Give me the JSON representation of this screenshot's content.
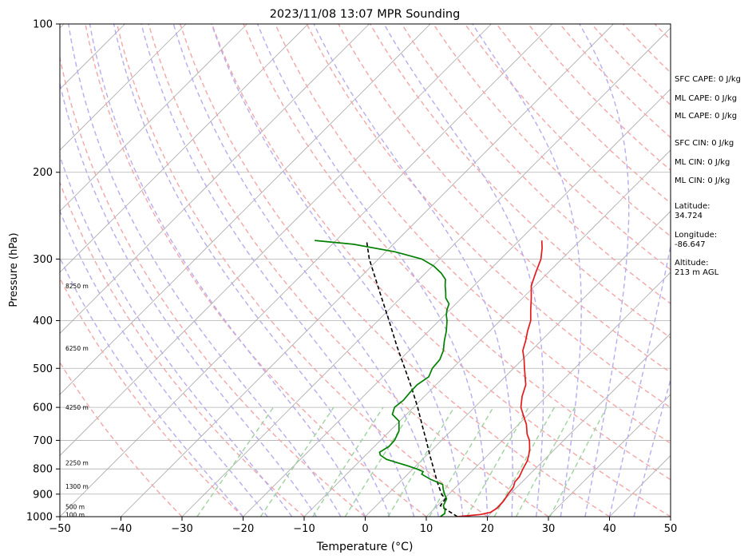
{
  "chart_data": {
    "type": "line",
    "title": "2023/11/08 13:07 MPR Sounding",
    "xlabel": "Temperature (°C)",
    "ylabel": "Pressure (hPa)",
    "xlim": [
      -50,
      50
    ],
    "ylim": [
      1000,
      100
    ],
    "y_scale": "log",
    "x_ticks": [
      "−50",
      "−40",
      "−30",
      "−20",
      "−10",
      "0",
      "10",
      "20",
      "30",
      "40",
      "50"
    ],
    "x_tick_values": [
      -50,
      -40,
      -30,
      -20,
      -10,
      0,
      10,
      20,
      30,
      40,
      50
    ],
    "y_ticks": [
      "100",
      "200",
      "300",
      "400",
      "500",
      "600",
      "700",
      "800",
      "900",
      "1000"
    ],
    "y_tick_values": [
      100,
      200,
      300,
      400,
      500,
      600,
      700,
      800,
      900,
      1000
    ],
    "grid": true,
    "colors": {
      "temperature": "#e41a1c",
      "dewpoint": "#008000",
      "parcel": "#000000",
      "dry_adiabats": "#f4a6a6",
      "moist_adiabats": "#b6acf0",
      "mixing_ratio": "#9fd29f",
      "isotherms": "#aaaaaa"
    },
    "height_labels": [
      {
        "text": "100 m",
        "p": 990
      },
      {
        "text": "500 m",
        "p": 955
      },
      {
        "text": "1300 m",
        "p": 868
      },
      {
        "text": "2250 m",
        "p": 778
      },
      {
        "text": "4250 m",
        "p": 600
      },
      {
        "text": "6250 m",
        "p": 455
      },
      {
        "text": "8250 m",
        "p": 340
      }
    ],
    "series": [
      {
        "key": "temperature",
        "points": [
          [
            1000,
            15.1
          ],
          [
            990,
            18.5
          ],
          [
            980,
            19.8
          ],
          [
            960,
            20.2
          ],
          [
            930,
            20.1
          ],
          [
            900,
            19.7
          ],
          [
            870,
            19.4
          ],
          [
            850,
            18.8
          ],
          [
            830,
            18.7
          ],
          [
            800,
            18.0
          ],
          [
            770,
            17.4
          ],
          [
            750,
            16.7
          ],
          [
            730,
            15.9
          ],
          [
            700,
            14.4
          ],
          [
            680,
            13.0
          ],
          [
            650,
            11.3
          ],
          [
            620,
            9.1
          ],
          [
            600,
            7.6
          ],
          [
            570,
            6.0
          ],
          [
            540,
            4.7
          ],
          [
            500,
            1.8
          ],
          [
            480,
            0.3
          ],
          [
            460,
            -1.4
          ],
          [
            440,
            -2.5
          ],
          [
            420,
            -3.8
          ],
          [
            400,
            -5.0
          ],
          [
            380,
            -6.8
          ],
          [
            360,
            -8.6
          ],
          [
            340,
            -10.6
          ],
          [
            320,
            -12.0
          ],
          [
            300,
            -13.4
          ],
          [
            285,
            -15.0
          ],
          [
            275,
            -16.3
          ]
        ]
      },
      {
        "key": "dewpoint",
        "points": [
          [
            1000,
            12.3
          ],
          [
            985,
            12.5
          ],
          [
            970,
            12.0
          ],
          [
            950,
            11.0
          ],
          [
            940,
            10.8
          ],
          [
            920,
            10.4
          ],
          [
            900,
            9.3
          ],
          [
            880,
            8.3
          ],
          [
            860,
            7.4
          ],
          [
            840,
            4.6
          ],
          [
            820,
            2.3
          ],
          [
            810,
            2.1
          ],
          [
            800,
            0.6
          ],
          [
            790,
            -1.1
          ],
          [
            780,
            -3.0
          ],
          [
            765,
            -5.9
          ],
          [
            750,
            -7.6
          ],
          [
            740,
            -8.2
          ],
          [
            720,
            -7.6
          ],
          [
            700,
            -7.7
          ],
          [
            670,
            -8.5
          ],
          [
            640,
            -10.1
          ],
          [
            620,
            -12.3
          ],
          [
            600,
            -13.1
          ],
          [
            580,
            -12.8
          ],
          [
            560,
            -13.0
          ],
          [
            540,
            -13.1
          ],
          [
            520,
            -12.5
          ],
          [
            500,
            -13.3
          ],
          [
            480,
            -13.5
          ],
          [
            460,
            -14.4
          ],
          [
            440,
            -15.8
          ],
          [
            420,
            -17.1
          ],
          [
            400,
            -18.7
          ],
          [
            390,
            -19.7
          ],
          [
            380,
            -20.5
          ],
          [
            370,
            -21.1
          ],
          [
            360,
            -22.6
          ],
          [
            350,
            -23.6
          ],
          [
            340,
            -24.7
          ],
          [
            330,
            -25.7
          ],
          [
            320,
            -27.5
          ],
          [
            310,
            -29.8
          ],
          [
            300,
            -32.9
          ],
          [
            290,
            -38.5
          ],
          [
            280,
            -46.5
          ],
          [
            275,
            -53.5
          ]
        ]
      },
      {
        "key": "parcel",
        "points": [
          [
            1000,
            15.1
          ],
          [
            975,
            12.8
          ],
          [
            950,
            10.5
          ],
          [
            920,
            10.2
          ],
          [
            900,
            8.8
          ],
          [
            850,
            6.1
          ],
          [
            800,
            3.4
          ],
          [
            750,
            0.5
          ],
          [
            700,
            -2.5
          ],
          [
            650,
            -5.8
          ],
          [
            600,
            -9.3
          ],
          [
            550,
            -13.3
          ],
          [
            500,
            -17.8
          ],
          [
            450,
            -22.8
          ],
          [
            400,
            -28.2
          ],
          [
            350,
            -34.4
          ],
          [
            300,
            -41.5
          ],
          [
            275,
            -45.0
          ]
        ]
      }
    ]
  },
  "indices": [
    "SFC CAPE: 0 J/kg",
    "ML CAPE: 0 J/kg",
    "ML CAPE: 0 J/kg",
    "SFC CIN: 0 J/kg",
    "ML CIN: 0 J/kg",
    "ML CIN: 0 J/kg"
  ],
  "location": {
    "latitude_label": "Latitude:",
    "latitude": "34.724",
    "longitude_label": "Longitude:",
    "longitude": "-86.647",
    "altitude_label": "Altitude:",
    "altitude": "213 m AGL"
  }
}
